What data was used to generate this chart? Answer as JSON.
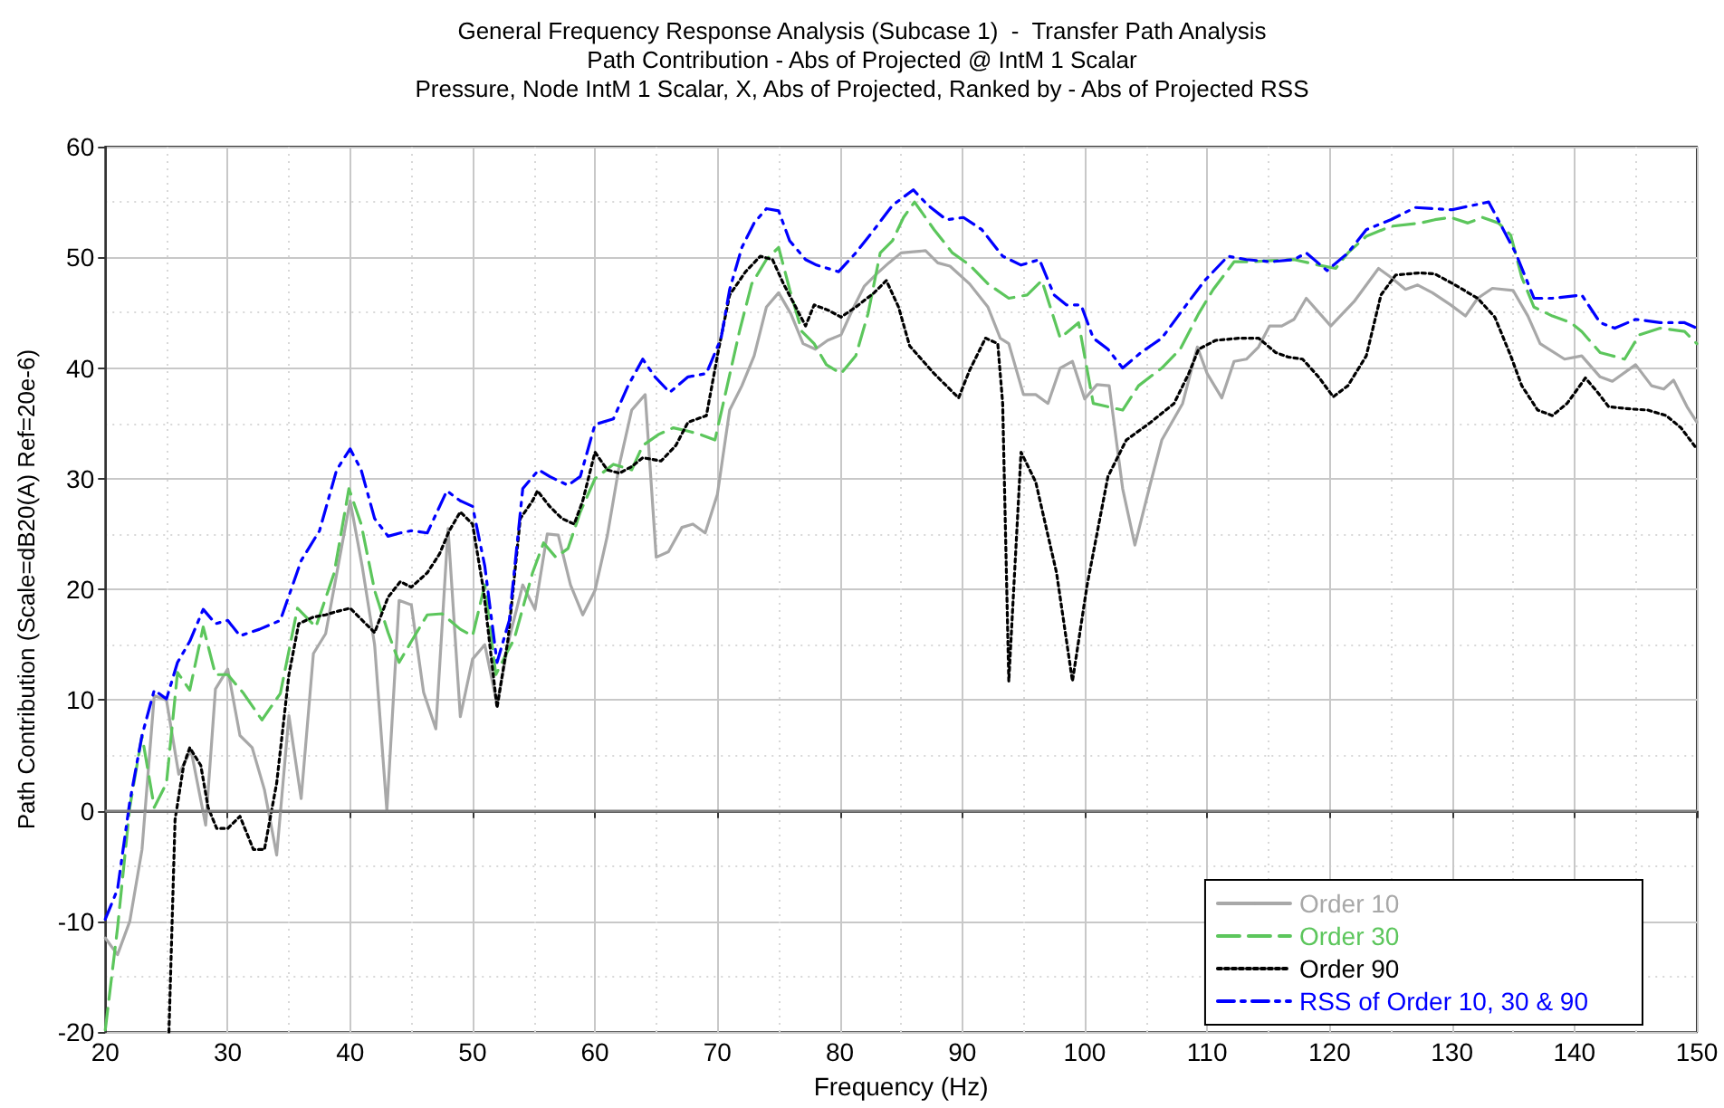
{
  "chart_data": {
    "type": "line",
    "title": "General Frequency Response Analysis (Subcase 1)  -  Transfer Path Analysis\nPath Contribution - Abs of Projected @ IntM 1 Scalar\nPressure, Node IntM 1 Scalar, X, Abs of Projected, Ranked by - Abs of Projected RSS",
    "xlabel": "Frequency (Hz)",
    "ylabel": "Path Contribution (Scale=dB20(A) Ref=20e-6)",
    "xlim": [
      20,
      150
    ],
    "ylim": [
      -20,
      60
    ],
    "xticks": [
      20,
      30,
      40,
      50,
      60,
      70,
      80,
      90,
      100,
      110,
      120,
      130,
      140,
      150
    ],
    "yticks": [
      -20,
      -10,
      0,
      10,
      20,
      30,
      40,
      50,
      60
    ],
    "grid": true,
    "legend": "bottom right",
    "ref_lines": [
      {
        "axis": "y",
        "value": 0,
        "color": "#808080"
      }
    ],
    "series": [
      {
        "name": "Order 10",
        "color": "#a8a8a8",
        "line_style": "solid",
        "x": [
          20,
          21,
          22,
          23,
          24,
          25,
          26,
          27,
          28.2,
          29,
          30,
          31,
          32,
          33,
          34,
          35,
          36,
          37,
          38,
          39,
          40,
          41,
          42,
          43,
          44,
          45,
          46,
          47,
          48,
          49,
          50,
          51,
          52,
          53,
          54.1,
          55.1,
          56.1,
          57,
          58,
          59,
          60,
          61,
          62,
          63,
          64.1,
          65,
          66,
          67.1,
          68,
          69,
          70,
          71,
          72,
          73,
          74,
          75,
          76,
          77,
          78,
          79,
          80.1,
          81,
          82,
          83,
          84,
          85,
          86,
          87,
          88,
          89,
          90.6,
          92.1,
          93.1,
          93.8,
          95,
          96,
          97,
          98,
          99,
          100,
          101,
          102,
          103.1,
          104.1,
          105.4,
          106.3,
          108,
          109.2,
          110,
          111.2,
          112.2,
          113.2,
          114.2,
          115.1,
          116.1,
          117.1,
          118.1,
          120.1,
          122,
          124,
          125,
          126.2,
          127.2,
          128.4,
          129.9,
          131.1,
          132.1,
          133.3,
          135,
          136.2,
          137.2,
          139.2,
          140.6,
          142.1,
          143.1,
          145,
          146.3,
          147.3,
          148.1,
          149.2,
          150
        ],
        "values": [
          -11.5,
          -13,
          -10,
          -3.5,
          10.4,
          10,
          3.3,
          5.5,
          -1.3,
          11,
          12.8,
          6.8,
          5.7,
          1.9,
          -4,
          8.6,
          1.1,
          14.2,
          16,
          22,
          28,
          22,
          15,
          0,
          19,
          18.6,
          10.7,
          7.4,
          25.5,
          8.5,
          13.7,
          15,
          9.6,
          15.6,
          20.4,
          18.2,
          25,
          24.9,
          20.4,
          17.7,
          19.9,
          24.8,
          31.3,
          36.2,
          37.6,
          22.9,
          23.4,
          25.6,
          25.9,
          25.1,
          28.6,
          36.2,
          38.4,
          41.1,
          45.5,
          46.8,
          44.9,
          42.2,
          41.7,
          42.5,
          43,
          45.2,
          47.4,
          48.5,
          49.5,
          50.4,
          50.5,
          50.6,
          49.5,
          49.2,
          47.6,
          45.5,
          42.7,
          42.2,
          37.6,
          37.6,
          36.8,
          40,
          40.6,
          37.2,
          38.5,
          38.4,
          29.1,
          24,
          29.7,
          33.5,
          36.8,
          41.9,
          39.5,
          37.3,
          40.6,
          40.8,
          41.9,
          43.8,
          43.8,
          44.4,
          46.3,
          43.8,
          46,
          49,
          48.2,
          47.1,
          47.5,
          46.8,
          45.7,
          44.7,
          46.3,
          47.2,
          47,
          44.7,
          42.2,
          40.8,
          41.1,
          39.2,
          38.8,
          40.3,
          38.4,
          38.1,
          38.9,
          36.5,
          35.1
        ]
      },
      {
        "name": "Order 30",
        "color": "#5cc65c",
        "line_style": "dashed",
        "x": [
          20,
          21,
          22,
          23,
          24,
          25,
          25.9,
          26.9,
          28,
          29,
          30,
          31.3,
          32.8,
          34.3,
          35.7,
          37.2,
          38.7,
          39.9,
          40.9,
          42,
          43.1,
          44,
          45,
          46.3,
          47.5,
          49,
          50,
          51,
          51.9,
          52.9,
          53.4,
          54.9,
          55.8,
          56.8,
          57.8,
          58.8,
          60,
          61.5,
          63,
          63.9,
          65.2,
          66.4,
          67.6,
          68.6,
          69.8,
          70.8,
          71.8,
          72.8,
          74,
          75,
          75.9,
          76.9,
          77.9,
          78.9,
          80.1,
          81.3,
          82.3,
          83.3,
          84.3,
          85.2,
          86.1,
          87.7,
          89.2,
          90.6,
          92.1,
          93.8,
          95.3,
          96.5,
          98,
          99.5,
          100.7,
          101.9,
          103.1,
          104.4,
          106.3,
          107.8,
          109.3,
          110.5,
          112.2,
          113.7,
          115.2,
          117.1,
          119.1,
          120.5,
          121.5,
          123,
          125,
          127.4,
          128.6,
          129.9,
          131.3,
          132.5,
          133.8,
          134.8,
          135.7,
          136.7,
          138.2,
          139.7,
          140.6,
          142.1,
          144.1,
          145.3,
          147,
          149,
          150
        ],
        "values": [
          -19.8,
          -10.6,
          0.3,
          6.8,
          0.3,
          2.5,
          12.5,
          10.9,
          16.6,
          12.3,
          12.3,
          10.6,
          8.2,
          10.6,
          18.3,
          16.6,
          21.5,
          29.1,
          25.9,
          19.9,
          16.1,
          13.4,
          15.3,
          17.7,
          17.8,
          16.4,
          15.8,
          20.4,
          12.3,
          14.5,
          15.5,
          21.5,
          24.2,
          22.9,
          23.7,
          27,
          30,
          31.3,
          30.8,
          33,
          34,
          34.6,
          34.3,
          34,
          33.5,
          38.4,
          43.3,
          47.6,
          49.8,
          50.9,
          47.1,
          43.3,
          42.2,
          40.3,
          39.5,
          41.1,
          44.9,
          50.4,
          51.5,
          53.6,
          55,
          52.5,
          50.4,
          49.3,
          47.6,
          46.3,
          46.6,
          47.9,
          42.7,
          44.1,
          36.8,
          36.5,
          36.2,
          38.4,
          40,
          41.7,
          44.9,
          47.1,
          49.6,
          49.6,
          49.7,
          49.8,
          49.3,
          49,
          50.4,
          51.9,
          52.8,
          53.1,
          53.4,
          53.6,
          53.1,
          53.6,
          53.1,
          52,
          48.2,
          45.5,
          44.7,
          44.1,
          43.3,
          41.4,
          40.8,
          43,
          43.6,
          43.3,
          42.2
        ]
      },
      {
        "name": "Order 90",
        "color": "#000000",
        "line_style": "dotted",
        "x": [
          25.2,
          25.7,
          26.4,
          26.9,
          27.8,
          28.4,
          29.1,
          30,
          31,
          32.1,
          33,
          34,
          35,
          35.8,
          37,
          38,
          38.9,
          40,
          41,
          42,
          43.1,
          44.1,
          45,
          46.3,
          47.3,
          48.1,
          49,
          50,
          50.9,
          52,
          52.9,
          53.9,
          54.9,
          55.3,
          56.3,
          57.3,
          58.3,
          59,
          60,
          61,
          62,
          63,
          63.9,
          65.4,
          66.6,
          67.6,
          69.1,
          70.1,
          71,
          72.3,
          73.5,
          74.5,
          75.4,
          76.4,
          77.2,
          77.9,
          79.1,
          80.1,
          81.3,
          82.8,
          83.8,
          84.8,
          85.7,
          87.7,
          89.7,
          90.6,
          91.9,
          92.9,
          93.3,
          93.8,
          94.8,
          96,
          97.7,
          99,
          100.2,
          101.9,
          103.4,
          105.4,
          107.3,
          108.5,
          109.3,
          110.7,
          112.7,
          114.2,
          115.6,
          116.6,
          117.8,
          119.1,
          120.3,
          121.5,
          123,
          124.2,
          125.4,
          127.4,
          128.6,
          130.1,
          132.1,
          133.5,
          134.8,
          135.7,
          137,
          138.2,
          139.4,
          140.9,
          141.9,
          142.8,
          144.6,
          146,
          147.5,
          148.7,
          150
        ],
        "values": [
          -20,
          -0.8,
          4.1,
          5.7,
          4.1,
          0.3,
          -1.6,
          -1.6,
          -0.5,
          -3.5,
          -3.5,
          2.5,
          12.3,
          16.9,
          17.5,
          17.7,
          18,
          18.3,
          17.2,
          16.1,
          19.3,
          20.7,
          20.2,
          21.5,
          23.2,
          25.3,
          27,
          25.9,
          19.9,
          9.3,
          15.5,
          26.4,
          28,
          28.9,
          27.5,
          26.4,
          25.9,
          28,
          32.4,
          30.8,
          30.5,
          31.1,
          31.9,
          31.6,
          33,
          35.1,
          35.7,
          41.7,
          46.6,
          48.7,
          50.1,
          49.8,
          47.6,
          45.5,
          43.8,
          45.7,
          45.2,
          44.6,
          45.5,
          46.8,
          47.9,
          45.5,
          42,
          39.5,
          37.3,
          39.8,
          42.7,
          42.2,
          36.8,
          11.7,
          32.4,
          29.7,
          21.5,
          11.7,
          20.4,
          30.2,
          33.5,
          35.1,
          36.8,
          39.5,
          41.7,
          42.5,
          42.7,
          42.7,
          41.4,
          41,
          40.8,
          39.2,
          37.4,
          38.4,
          41.1,
          46.6,
          48.4,
          48.6,
          48.5,
          47.6,
          46.3,
          44.6,
          41.1,
          38.4,
          36.2,
          35.7,
          36.8,
          39.1,
          37.8,
          36.5,
          36.3,
          36.2,
          35.7,
          34.6,
          32.7
        ]
      },
      {
        "name": "RSS of Order 10, 30 & 90",
        "color": "#0000ff",
        "line_style": "dashdot",
        "x": [
          20,
          21,
          22,
          23,
          24,
          25,
          25.9,
          26.9,
          28,
          29,
          30,
          31,
          32.6,
          34.3,
          36,
          37.5,
          38.9,
          40,
          40.9,
          42,
          43.1,
          44.1,
          45,
          46.3,
          47.9,
          49,
          50,
          51,
          52,
          53,
          54.1,
          55.4,
          56.3,
          57.8,
          58.8,
          60,
          61.5,
          62.7,
          63.9,
          64.9,
          66.1,
          67.6,
          69.1,
          70.3,
          71,
          72,
          73,
          74,
          75,
          75.9,
          77.2,
          78.1,
          79.9,
          81.3,
          82.8,
          84.3,
          86,
          87.2,
          88.7,
          90.1,
          91.6,
          93.3,
          94.8,
          96.3,
          97.5,
          98.5,
          99.7,
          100.7,
          101.9,
          103.1,
          104.6,
          106.3,
          108.3,
          109.8,
          111.7,
          113.2,
          115.2,
          117.1,
          118.1,
          119.8,
          121.5,
          123,
          125,
          127,
          130,
          133,
          135.2,
          136.7,
          138.2,
          140.6,
          142.1,
          143.3,
          145,
          147,
          149,
          150
        ],
        "values": [
          -9.8,
          -7.1,
          0.8,
          6.8,
          10.9,
          10.1,
          13.4,
          15.3,
          18.2,
          16.9,
          17.2,
          15.8,
          16.4,
          17.2,
          22.6,
          25.3,
          30.8,
          32.7,
          30.8,
          26.4,
          24.8,
          25.1,
          25.3,
          25.1,
          28.9,
          28,
          27.5,
          22.1,
          13.4,
          17.2,
          29.1,
          30.8,
          30.2,
          29.4,
          30.2,
          34.9,
          35.4,
          38.4,
          40.8,
          39.2,
          37.8,
          39.2,
          39.5,
          42.7,
          47.1,
          50.9,
          53.1,
          54.4,
          54.2,
          51.5,
          49.8,
          49.3,
          48.7,
          50.4,
          52.5,
          54.7,
          56.1,
          54.7,
          53.4,
          53.6,
          52.5,
          50.1,
          49.3,
          49.8,
          46.6,
          45.7,
          45.7,
          42.7,
          41.7,
          40,
          41.4,
          42.7,
          45.7,
          47.9,
          50.1,
          49.8,
          49.6,
          49.8,
          50.4,
          48.8,
          50.4,
          52.5,
          53.4,
          54.5,
          54.3,
          55,
          50.4,
          46.3,
          46.3,
          46.6,
          44.1,
          43.6,
          44.4,
          44.1,
          44.1,
          43.6
        ]
      }
    ]
  }
}
